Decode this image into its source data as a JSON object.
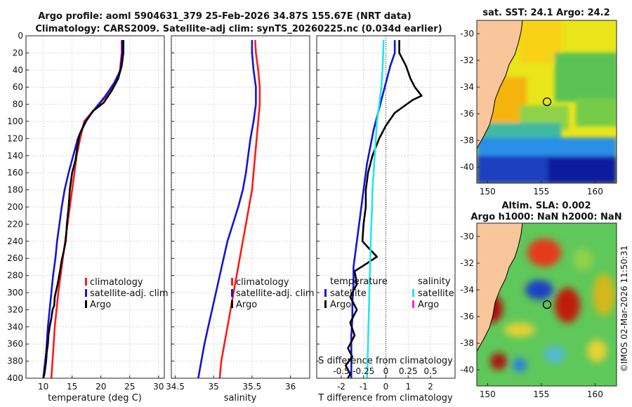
{
  "title": {
    "line1": "Argo profile: aoml 5904631_379 25-Feb-2026 34.87S 155.67E (NRT data)",
    "line2": "Climatology: CARS2009. Satellite-adj clim: synTS_20260225.nc (0.034d earlier)"
  },
  "watermark": "©IMOS 02-Mar-2026 11:50:31",
  "colors": {
    "climatology": "#ff1a1a",
    "satellite": "#1414d6",
    "argo": "#000000",
    "sat_salinity": "#22e6f0",
    "argo_salinity": "#ff22dd",
    "land": "#f9c59a"
  },
  "chart_data": [
    {
      "id": "temperature",
      "type": "line",
      "xlabel": "temperature (deg C)",
      "ylabel": "",
      "xlim": [
        7,
        31
      ],
      "ylim": [
        400,
        0
      ],
      "xticks": [
        10,
        15,
        20,
        25,
        30
      ],
      "xtick_labels": [
        "10",
        "15",
        "20",
        "25",
        "30"
      ],
      "yticks": [
        0,
        20,
        40,
        60,
        80,
        100,
        120,
        140,
        160,
        180,
        200,
        220,
        240,
        260,
        280,
        300,
        320,
        340,
        360,
        380,
        400
      ],
      "ytick_labels": [
        "0",
        "20",
        "40",
        "60",
        "80",
        "100",
        "120",
        "140",
        "160",
        "180",
        "200",
        "220",
        "240",
        "260",
        "280",
        "300",
        "320",
        "340",
        "360",
        "380",
        "400"
      ],
      "grid": true,
      "legend_location": "right",
      "legend": [
        "climatology",
        "satellite-adj. clim",
        "Argo"
      ],
      "series": [
        {
          "name": "climatology",
          "color": "#ff1a1a",
          "x": [
            23.6,
            23.6,
            23.3,
            22.6,
            21.0,
            19.0,
            17.1,
            16.4,
            15.8,
            15.4,
            15.0,
            14.6,
            14.2,
            13.8,
            13.4,
            13.0,
            12.6,
            12.3,
            12.0,
            11.7,
            11.4
          ],
          "y": [
            5,
            20,
            40,
            55,
            70,
            85,
            100,
            120,
            140,
            160,
            180,
            200,
            220,
            240,
            260,
            280,
            300,
            320,
            340,
            370,
            400
          ]
        },
        {
          "name": "satellite-adj. clim",
          "color": "#1414d6",
          "x": [
            23.7,
            23.7,
            23.4,
            22.3,
            20.8,
            19.0,
            17.3,
            16.0,
            15.2,
            14.4,
            13.7,
            13.2,
            12.8,
            12.4,
            12.1,
            11.7,
            11.4,
            11.1,
            10.8,
            10.5,
            10.0
          ],
          "y": [
            5,
            20,
            40,
            55,
            70,
            85,
            100,
            120,
            140,
            160,
            180,
            200,
            220,
            240,
            260,
            280,
            300,
            320,
            340,
            370,
            400
          ]
        },
        {
          "name": "Argo",
          "color": "#000000",
          "x": [
            23.9,
            23.9,
            23.6,
            23.0,
            21.8,
            20.5,
            18.6,
            17.4,
            16.3,
            15.9,
            15.6,
            15.0,
            14.6,
            14.4,
            14.1,
            13.9,
            13.6,
            13.2,
            12.9,
            12.5,
            12.0,
            11.9,
            11.6,
            11.4,
            11.1,
            10.9,
            10.8,
            10.6,
            10.5,
            10.3,
            10.2,
            10.0
          ],
          "y": [
            5,
            20,
            35,
            50,
            65,
            78,
            88,
            100,
            115,
            130,
            145,
            160,
            180,
            200,
            220,
            240,
            250,
            262,
            275,
            290,
            305,
            315,
            320,
            330,
            340,
            350,
            360,
            370,
            380,
            390,
            395,
            400
          ]
        }
      ]
    },
    {
      "id": "salinity",
      "type": "line",
      "xlabel": "salinity",
      "ylabel": "",
      "xlim": [
        34.45,
        36.25
      ],
      "ylim": [
        400,
        0
      ],
      "xticks": [
        34.5,
        35,
        35.5,
        36
      ],
      "xtick_labels": [
        "34.5",
        "35",
        "35.5",
        "36"
      ],
      "grid": true,
      "legend_location": "right",
      "legend": [
        "climatology",
        "satellite-adj. clim",
        "Argo"
      ],
      "series": [
        {
          "name": "climatology",
          "color": "#ff1a1a",
          "x": [
            35.54,
            35.55,
            35.58,
            35.6,
            35.6,
            35.58,
            35.56,
            35.54,
            35.52,
            35.5,
            35.46,
            35.42,
            35.38,
            35.34,
            35.3,
            35.26,
            35.22,
            35.18,
            35.14,
            35.1,
            35.08
          ],
          "y": [
            5,
            20,
            40,
            60,
            80,
            100,
            120,
            140,
            160,
            180,
            200,
            220,
            240,
            260,
            280,
            300,
            320,
            340,
            360,
            380,
            400
          ]
        },
        {
          "name": "satellite-adj. clim",
          "color": "#1414d6",
          "x": [
            35.5,
            35.5,
            35.52,
            35.55,
            35.55,
            35.52,
            35.48,
            35.45,
            35.42,
            35.38,
            35.32,
            35.25,
            35.18,
            35.13,
            35.08,
            35.03,
            34.98,
            34.93,
            34.88,
            34.84,
            34.8
          ],
          "y": [
            5,
            20,
            40,
            60,
            80,
            100,
            120,
            140,
            160,
            180,
            200,
            220,
            240,
            260,
            280,
            300,
            320,
            340,
            360,
            380,
            400
          ]
        }
      ]
    },
    {
      "id": "difference",
      "type": "line",
      "xlabel": "T difference from climatology",
      "top_xlabel": "S difference from climatology",
      "xlim": [
        -3.1,
        3.1
      ],
      "ylim": [
        400,
        0
      ],
      "xticks": [
        -2,
        -1,
        0,
        1,
        2
      ],
      "xtick_labels": [
        "-2",
        "-1",
        "0",
        "1",
        "2"
      ],
      "top_xticks": [
        -2,
        -1,
        0,
        1,
        2
      ],
      "top_xtick_labels": [
        "-0.5",
        "-0.25",
        "0",
        "0.25",
        "0.5"
      ],
      "grid": true,
      "legend_temperature_title": "temperature",
      "legend_salinity_title": "salinity",
      "legend_temperature": [
        "satellite",
        "Argo"
      ],
      "legend_salinity": [
        "satellite",
        "Argo"
      ],
      "series": [
        {
          "name": "T satellite",
          "color": "#1414d6",
          "x": [
            0.4,
            0.4,
            0.2,
            0.0,
            -0.2,
            -0.4,
            -0.55,
            -0.7,
            -0.85,
            -0.95,
            -1.05,
            -1.15,
            -1.25,
            -1.35,
            -1.45,
            -1.45,
            -1.5,
            -1.5,
            -1.55,
            -1.55,
            -1.55
          ],
          "y": [
            5,
            20,
            35,
            55,
            75,
            95,
            110,
            130,
            150,
            170,
            190,
            210,
            230,
            250,
            270,
            290,
            310,
            330,
            350,
            370,
            400
          ]
        },
        {
          "name": "T Argo",
          "color": "#000000",
          "x": [
            0.6,
            0.6,
            0.9,
            1.1,
            1.3,
            1.6,
            1.2,
            0.4,
            0.0,
            -0.3,
            -0.6,
            -0.8,
            -0.9,
            -0.9,
            -1.0,
            -1.05,
            -0.7,
            -0.4,
            -0.8,
            -1.4,
            -1.3,
            -1.6,
            -1.3,
            -1.6,
            -1.4,
            -1.7,
            -1.5,
            -1.8,
            -1.6,
            -1.7
          ],
          "y": [
            5,
            20,
            35,
            50,
            60,
            70,
            75,
            90,
            105,
            120,
            140,
            160,
            180,
            200,
            220,
            240,
            250,
            258,
            265,
            275,
            290,
            305,
            320,
            335,
            350,
            365,
            375,
            385,
            395,
            400
          ]
        },
        {
          "name": "S satellite",
          "color": "#22e6f0",
          "x": [
            -0.1,
            -0.12,
            -0.15,
            -0.2,
            -0.3,
            -0.4,
            -0.45,
            -0.5,
            -0.55,
            -0.6,
            -0.62,
            -0.65,
            -0.68,
            -0.7,
            -0.72,
            -0.74,
            -0.76,
            -0.78,
            -0.8,
            -0.82,
            -0.84
          ],
          "y": [
            5,
            20,
            40,
            60,
            80,
            100,
            120,
            140,
            160,
            180,
            200,
            220,
            240,
            260,
            280,
            300,
            320,
            340,
            360,
            380,
            400
          ]
        }
      ]
    },
    {
      "id": "map_sst",
      "type": "heatmap",
      "title": "sat. SST: 24.1 Argo: 24.2",
      "xlim": [
        149,
        162
      ],
      "ylim": [
        -41.2,
        -29
      ],
      "xticks": [
        150,
        155,
        160
      ],
      "xtick_labels": [
        "150",
        "155",
        "160"
      ],
      "yticks": [
        -30,
        -32,
        -34,
        -36,
        -38,
        -40
      ],
      "ytick_labels": [
        "-30",
        "-32",
        "-34",
        "-36",
        "-38",
        "-40"
      ],
      "marker": {
        "lon": 155.67,
        "lat": -34.87
      }
    },
    {
      "id": "map_sla",
      "type": "heatmap",
      "title": "Altim. SLA: 0.002",
      "subtitle": "Argo h1000: NaN h2000: NaN",
      "xlim": [
        149,
        162
      ],
      "ylim": [
        -41.2,
        -29
      ],
      "xticks": [
        150,
        155,
        160
      ],
      "xtick_labels": [
        "150",
        "155",
        "160"
      ],
      "yticks": [
        -30,
        -32,
        -34,
        -36,
        -38,
        -40
      ],
      "ytick_labels": [
        "-30",
        "-32",
        "-34",
        "-36",
        "-38",
        "-40"
      ],
      "marker": {
        "lon": 155.67,
        "lat": -34.87
      }
    }
  ]
}
